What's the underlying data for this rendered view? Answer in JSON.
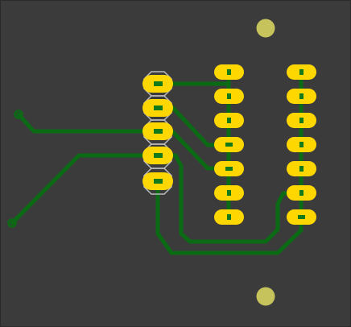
{
  "board": {
    "colors": {
      "background": "#3b3b3b",
      "border": "#2a2a2a",
      "trace": "#0b6b14",
      "pad": "#ffd700",
      "drill": "#127a1a",
      "silkscreen": "#bdbdbd",
      "mounting_hole": "#c6c25c"
    },
    "components": [
      {
        "name": "header-5pin",
        "pins": 5
      },
      {
        "name": "dip-left-column",
        "pins": 7
      },
      {
        "name": "dip-right-column",
        "pins": 7
      },
      {
        "name": "mounting-hole-top"
      },
      {
        "name": "mounting-hole-bottom"
      },
      {
        "name": "test-point-left-top"
      },
      {
        "name": "test-point-left-bottom"
      }
    ]
  }
}
